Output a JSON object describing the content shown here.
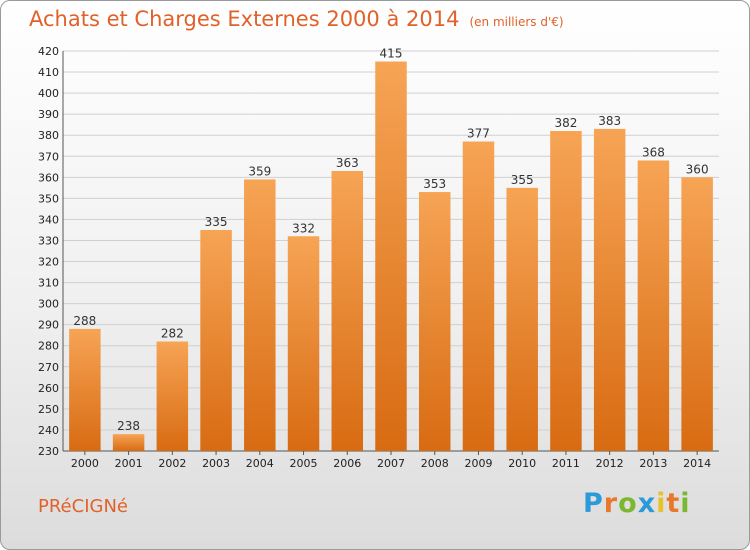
{
  "header": {
    "title": "Achats et Charges Externes 2000 à 2014",
    "unit": "(en milliers d'€)"
  },
  "footer": {
    "commune": "PRéCIGNé",
    "logo_letters": [
      "P",
      "r",
      "o",
      "x",
      "i",
      "t",
      "i"
    ],
    "logo_colors": [
      "#2a9ad8",
      "#e8782a",
      "#7ab830",
      "#2a9ad8",
      "#e8c22a",
      "#e8782a",
      "#7ab830"
    ]
  },
  "colors": {
    "title": "#e0622a",
    "bar_light": "#f6a455",
    "bar_dark": "#d86b12"
  },
  "chart_data": {
    "type": "bar",
    "title": "Achats et Charges Externes 2000 à 2014",
    "subtitle": "(en milliers d'€)",
    "categories": [
      "2000",
      "2001",
      "2002",
      "2003",
      "2004",
      "2005",
      "2006",
      "2007",
      "2008",
      "2009",
      "2010",
      "2011",
      "2012",
      "2013",
      "2014"
    ],
    "values": [
      288,
      238,
      282,
      335,
      359,
      332,
      363,
      415,
      353,
      377,
      355,
      382,
      383,
      368,
      360
    ],
    "ylim": [
      230,
      420
    ],
    "ytick_step": 10,
    "grid": true
  }
}
